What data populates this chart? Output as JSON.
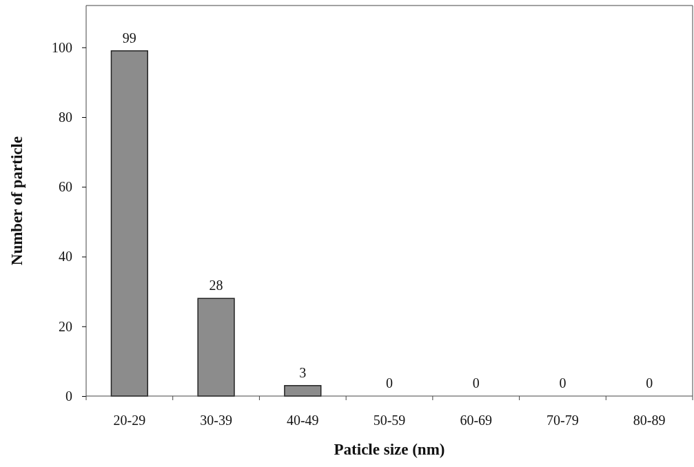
{
  "chart_data": {
    "type": "bar",
    "xlabel": "Paticle size (nm)",
    "ylabel": "Number of particle",
    "categories": [
      "20-29",
      "30-39",
      "40-49",
      "50-59",
      "60-69",
      "70-79",
      "80-89"
    ],
    "values": [
      99,
      28,
      3,
      0,
      0,
      0,
      0
    ],
    "color": "#8c8c8c",
    "ylim": [
      0,
      112
    ],
    "yticks": [
      0,
      20,
      40,
      60,
      80,
      100
    ],
    "data_labels": true,
    "grid": false
  }
}
